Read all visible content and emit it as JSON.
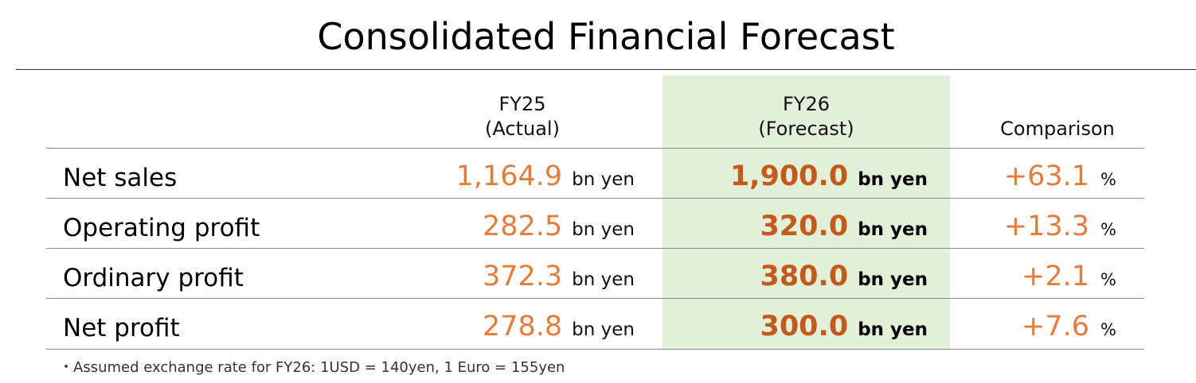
{
  "title": "Consolidated Financial Forecast",
  "columns": {
    "fy25": {
      "line1": "FY25",
      "line2": "(Actual)"
    },
    "fy26": {
      "line1": "FY26",
      "line2": "(Forecast)"
    },
    "comparison": "Comparison"
  },
  "rows": [
    {
      "label": "Net sales",
      "fy25": "1,164.9",
      "fy25_unit": "bn yen",
      "fy26": "1,900.0",
      "fy26_unit": "bn yen",
      "comparison": "+63.1",
      "comparison_unit": "%"
    },
    {
      "label": "Operating profit",
      "fy25": "282.5",
      "fy25_unit": "bn yen",
      "fy26": "320.0",
      "fy26_unit": "bn yen",
      "comparison": "+13.3",
      "comparison_unit": "%"
    },
    {
      "label": "Ordinary profit",
      "fy25": "372.3",
      "fy25_unit": "bn yen",
      "fy26": "380.0",
      "fy26_unit": "bn yen",
      "comparison": "+2.1",
      "comparison_unit": "%"
    },
    {
      "label": "Net profit",
      "fy25": "278.8",
      "fy25_unit": "bn yen",
      "fy26": "300.0",
      "fy26_unit": "bn yen",
      "comparison": "+7.6",
      "comparison_unit": "%"
    }
  ],
  "note": "・Assumed exchange rate for FY26: 1USD = 140yen, 1 Euro = 155yen",
  "colors": {
    "value": "#e47c3a",
    "forecast_value": "#c4591c",
    "forecast_band": "#e2efd9"
  }
}
